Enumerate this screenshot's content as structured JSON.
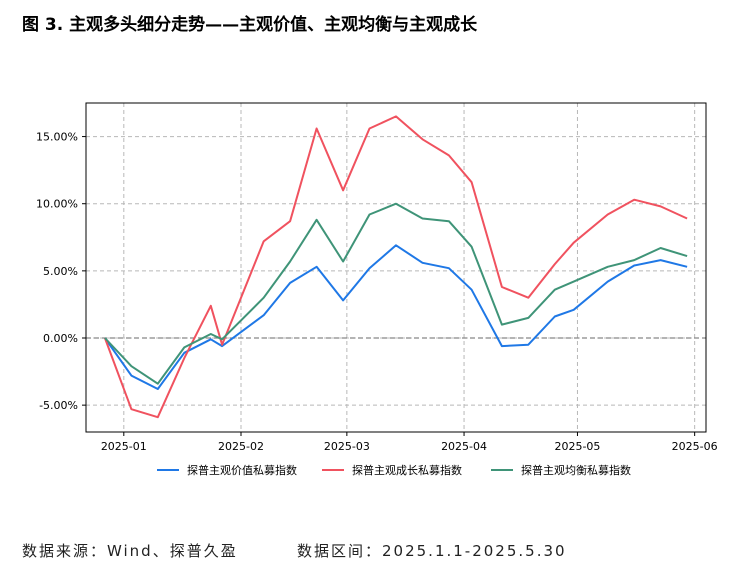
{
  "figure": {
    "title": "图 3. 主观多头细分走势——主观价值、主观均衡与主观成长"
  },
  "footer": {
    "source": "数据来源：Wind、探普久盈",
    "range": "数据区间：2025.1.1-2025.5.30"
  },
  "colors": {
    "value": "#1f78e6",
    "growth": "#f0525f",
    "balanced": "#3f9478",
    "grid": "#b8b8b8",
    "zero_line": "#888888"
  },
  "chart_data": {
    "type": "line",
    "title": "",
    "xlabel": "",
    "ylabel": "",
    "x": [
      "2024-12-27",
      "2025-01-03",
      "2025-01-10",
      "2025-01-17",
      "2025-01-24",
      "2025-01-27",
      "2025-02-07",
      "2025-02-14",
      "2025-02-21",
      "2025-02-28",
      "2025-03-07",
      "2025-03-14",
      "2025-03-21",
      "2025-03-28",
      "2025-04-03",
      "2025-04-11",
      "2025-04-18",
      "2025-04-25",
      "2025-04-30",
      "2025-05-09",
      "2025-05-16",
      "2025-05-23",
      "2025-05-30"
    ],
    "x_ticks": [
      "2025-01",
      "2025-02",
      "2025-03",
      "2025-04",
      "2025-05",
      "2025-06"
    ],
    "y_ticks": [
      -5.0,
      0.0,
      5.0,
      10.0,
      15.0
    ],
    "y_tick_labels": [
      "-5.00%",
      "0.00%",
      "5.00%",
      "10.00%",
      "15.00%"
    ],
    "ylim": [
      -7.0,
      17.5
    ],
    "xlim": [
      "2024-12-22",
      "2025-06-04"
    ],
    "grid": true,
    "zero_line": true,
    "legend_position": "bottom",
    "series": [
      {
        "name": "探普主观价值私募指数",
        "color_key": "value",
        "values": [
          0.0,
          -2.8,
          -3.8,
          -1.1,
          -0.1,
          -0.6,
          1.7,
          4.1,
          5.3,
          2.8,
          5.2,
          6.9,
          5.6,
          5.2,
          3.6,
          -0.6,
          -0.5,
          1.6,
          2.1,
          4.2,
          5.4,
          5.8,
          5.3
        ]
      },
      {
        "name": "探普主观成长私募指数",
        "color_key": "growth",
        "values": [
          0.0,
          -5.3,
          -5.9,
          -1.5,
          2.4,
          -0.5,
          7.2,
          8.7,
          15.6,
          11.0,
          15.6,
          16.5,
          14.8,
          13.6,
          11.6,
          3.8,
          3.0,
          5.5,
          7.1,
          9.2,
          10.3,
          9.8,
          8.9
        ]
      },
      {
        "name": "探普主观均衡私募指数",
        "color_key": "balanced",
        "values": [
          0.0,
          -2.1,
          -3.4,
          -0.7,
          0.3,
          -0.1,
          3.0,
          5.7,
          8.8,
          5.7,
          9.2,
          10.0,
          8.9,
          8.7,
          6.8,
          1.0,
          1.5,
          3.6,
          4.2,
          5.3,
          5.8,
          6.7,
          6.1
        ]
      }
    ]
  }
}
